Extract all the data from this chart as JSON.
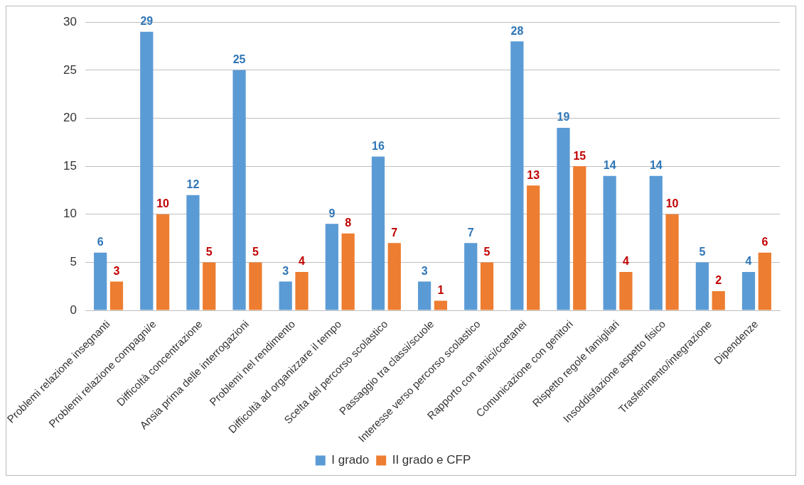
{
  "chart_data": {
    "type": "bar",
    "categories": [
      "Problemi relazione insegnanti",
      "Problemi relazione compagni/e",
      "Difficoltà concentrazione",
      "Ansia prima delle interrogazioni",
      "Problemi nel rendimento",
      "Difficoltà ad organizzare il tempo",
      "Scelta del percorso scolastico",
      "Passaggio tra classi/scuole",
      "Interesse verso percorso scolastico",
      "Rapporto con amici/coetanei",
      "Comunicazione con genitori",
      "Rispetto regole famigliari",
      "Insoddisfazione aspetto fisico",
      "Trasferimento/integrazione",
      "Dipendenze"
    ],
    "series": [
      {
        "name": "I grado",
        "color": "#5b9bd5",
        "values": [
          6,
          29,
          12,
          25,
          3,
          9,
          16,
          3,
          7,
          28,
          19,
          14,
          14,
          5,
          4
        ]
      },
      {
        "name": "II grado e CFP",
        "color": "#ed7d31",
        "values": [
          3,
          10,
          5,
          5,
          4,
          8,
          7,
          1,
          5,
          13,
          15,
          4,
          10,
          2,
          6
        ]
      }
    ],
    "ylim": [
      0,
      30
    ],
    "yticks": [
      0,
      5,
      10,
      15,
      20,
      25,
      30
    ],
    "grid": "y",
    "legend": "bottom",
    "data_labels": true
  }
}
